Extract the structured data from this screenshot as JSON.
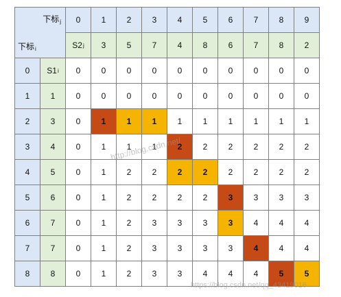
{
  "corner": {
    "col_label": "下标",
    "col_sub": "j",
    "row_label": "下标",
    "row_sub": "i"
  },
  "j_indices": [
    "0",
    "1",
    "2",
    "3",
    "4",
    "5",
    "6",
    "7",
    "8",
    "9"
  ],
  "s2": {
    "label": "S2",
    "sub": "j",
    "values": [
      "3",
      "5",
      "7",
      "4",
      "8",
      "6",
      "7",
      "8",
      "2"
    ]
  },
  "rows": [
    {
      "i": "0",
      "s1": "S1",
      "s1_sub": "i",
      "cells": [
        "0",
        "0",
        "0",
        "0",
        "0",
        "0",
        "0",
        "0",
        "0",
        "0"
      ]
    },
    {
      "i": "1",
      "s1": "1",
      "cells": [
        "0",
        "0",
        "0",
        "0",
        "0",
        "0",
        "0",
        "0",
        "0",
        "0"
      ]
    },
    {
      "i": "2",
      "s1": "3",
      "cells": [
        "0",
        "1",
        "1",
        "1",
        "1",
        "1",
        "1",
        "1",
        "1",
        "1"
      ]
    },
    {
      "i": "3",
      "s1": "4",
      "cells": [
        "0",
        "1",
        "1",
        "1",
        "2",
        "2",
        "2",
        "2",
        "2",
        "2"
      ]
    },
    {
      "i": "4",
      "s1": "5",
      "cells": [
        "0",
        "1",
        "2",
        "2",
        "2",
        "2",
        "2",
        "2",
        "2",
        "2"
      ]
    },
    {
      "i": "5",
      "s1": "6",
      "cells": [
        "0",
        "1",
        "2",
        "2",
        "2",
        "2",
        "3",
        "3",
        "3",
        "3"
      ]
    },
    {
      "i": "6",
      "s1": "7",
      "cells": [
        "0",
        "1",
        "2",
        "3",
        "3",
        "3",
        "3",
        "4",
        "4",
        "4"
      ]
    },
    {
      "i": "7",
      "s1": "7",
      "cells": [
        "0",
        "1",
        "2",
        "3",
        "3",
        "3",
        "3",
        "4",
        "4",
        "4"
      ]
    },
    {
      "i": "8",
      "s1": "8",
      "cells": [
        "0",
        "1",
        "2",
        "3",
        "3",
        "4",
        "4",
        "4",
        "5",
        "5"
      ]
    }
  ],
  "highlights": {
    "dark": [
      [
        2,
        1
      ],
      [
        3,
        4
      ],
      [
        5,
        6
      ],
      [
        7,
        7
      ],
      [
        8,
        8
      ]
    ],
    "amber": [
      [
        2,
        2
      ],
      [
        2,
        3
      ],
      [
        4,
        4
      ],
      [
        4,
        5
      ],
      [
        6,
        6
      ],
      [
        8,
        9
      ]
    ]
  },
  "colors": {
    "header_blue": "#dbe7f6",
    "header_green": "#e2efd8",
    "dark_orange": "#c64a16",
    "amber": "#f5b400"
  },
  "watermark": "http://blog.csdn.net/",
  "watermark2": "https://blog.csdn.net/qq_43419016"
}
